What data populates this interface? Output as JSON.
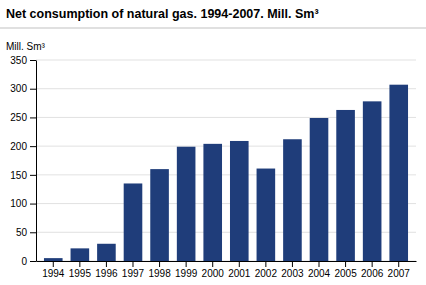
{
  "chart_data": {
    "type": "bar",
    "title": "Net consumption of natural gas. 1994-2007. Mill. Sm³",
    "ylabel": "Mill. Sm³",
    "categories": [
      "1994",
      "1995",
      "1996",
      "1997",
      "1998",
      "1999",
      "2000",
      "2001",
      "2002",
      "2003",
      "2004",
      "2005",
      "2006",
      "2007"
    ],
    "values": [
      5,
      22,
      30,
      135,
      160,
      199,
      204,
      209,
      161,
      212,
      249,
      263,
      278,
      307
    ],
    "color": "#1F3D7A",
    "ylim": [
      0,
      350
    ],
    "yticks": [
      0,
      50,
      100,
      150,
      200,
      250,
      300,
      350
    ],
    "grid": true
  }
}
